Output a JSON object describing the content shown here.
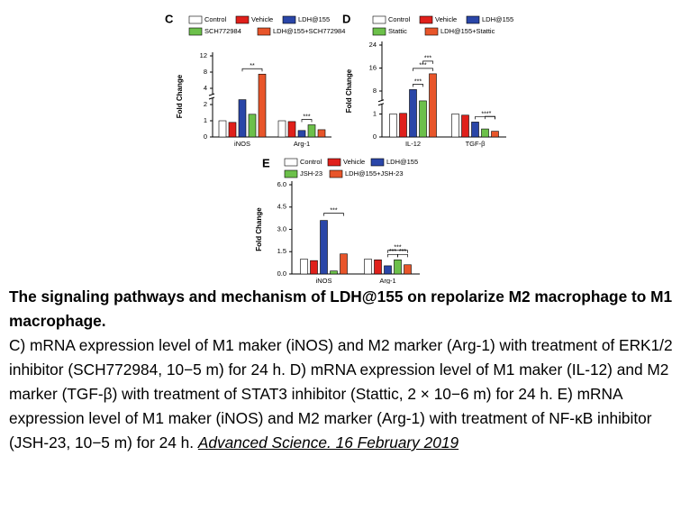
{
  "chart_data": [
    {
      "type": "bar",
      "panel_label": "C",
      "ylabel": "Fold Change",
      "categories": [
        "iNOS",
        "Arg-1"
      ],
      "series": [
        {
          "name": "Control",
          "color": "#ffffff",
          "values": [
            1.0,
            1.0
          ]
        },
        {
          "name": "Vehicle",
          "color": "#e0201b",
          "values": [
            0.9,
            0.95
          ]
        },
        {
          "name": "LDH@155",
          "color": "#2a46a8",
          "values": [
            2.6,
            0.4
          ]
        },
        {
          "name": "SCH772984",
          "color": "#6cc04a",
          "values": [
            1.4,
            0.75
          ]
        },
        {
          "name": "LDH@155+SCH772984",
          "color": "#e8552a",
          "values": [
            7.5,
            0.45
          ]
        }
      ],
      "ylim": [
        0,
        12
      ],
      "yticks": [
        0,
        1,
        2,
        4,
        8,
        12
      ],
      "annotations": [
        "**",
        "***"
      ]
    },
    {
      "type": "bar",
      "panel_label": "D",
      "ylabel": "Fold Change",
      "categories": [
        "IL-12",
        "TGF-β"
      ],
      "series": [
        {
          "name": "Control",
          "color": "#ffffff",
          "values": [
            1.0,
            1.0
          ]
        },
        {
          "name": "Vehicle",
          "color": "#e0201b",
          "values": [
            1.2,
            0.95
          ]
        },
        {
          "name": "LDH@155",
          "color": "#2a46a8",
          "values": [
            8.5,
            0.65
          ]
        },
        {
          "name": "Stattic",
          "color": "#6cc04a",
          "values": [
            5,
            0.35
          ]
        },
        {
          "name": "LDH@155+Stattic",
          "color": "#e8552a",
          "values": [
            14,
            0.25
          ]
        }
      ],
      "ylim": [
        0,
        24
      ],
      "yticks": [
        0,
        1,
        8,
        16,
        24
      ],
      "annotations": [
        "***",
        "***",
        "***",
        "***",
        "*"
      ]
    },
    {
      "type": "bar",
      "panel_label": "E",
      "ylabel": "Fold Change",
      "categories": [
        "iNOS",
        "Arg-1"
      ],
      "series": [
        {
          "name": "Control",
          "color": "#ffffff",
          "values": [
            1.0,
            1.0
          ]
        },
        {
          "name": "Vehicle",
          "color": "#e0201b",
          "values": [
            0.9,
            0.95
          ]
        },
        {
          "name": "LDH@155",
          "color": "#2a46a8",
          "values": [
            3.6,
            0.55
          ]
        },
        {
          "name": "JSH-23",
          "color": "#6cc04a",
          "values": [
            0.2,
            0.95
          ]
        },
        {
          "name": "LDH@155+JSH-23",
          "color": "#e8552a",
          "values": [
            1.35,
            0.62
          ]
        }
      ],
      "ylim": [
        0,
        6
      ],
      "yticks": [
        {
          "value": 0,
          "label": "0.0"
        },
        {
          "value": 1.5,
          "label": "1.5"
        },
        {
          "value": 3,
          "label": "3.0"
        },
        {
          "value": 4.5,
          "label": "4.5"
        },
        {
          "value": 6,
          "label": "6.0"
        }
      ],
      "annotations": [
        "***",
        "***",
        "***",
        "***"
      ]
    }
  ],
  "caption": {
    "title": "The signaling pathways and mechanism of LDH@155 on repolarize M2 macrophage to M1 macrophage.",
    "body": "C) mRNA expression level of M1 maker (iNOS) and M2 marker (Arg-1) with treatment of ERK1/2 inhibitor (SCH772984, 10−5 m) for 24 h. D) mRNA expression level of M1 maker (IL-12) and M2 marker (TGF-β) with treatment of STAT3 inhibitor (Stattic, 2 × 10−6 m) for 24 h. E) mRNA expression level of M1 maker (iNOS) and M2 marker (Arg-1) with treatment of NF-κB inhibitor (JSH-23, 10−5 m) for 24 h.",
    "source": "Advanced Science. 16 February 2019"
  }
}
